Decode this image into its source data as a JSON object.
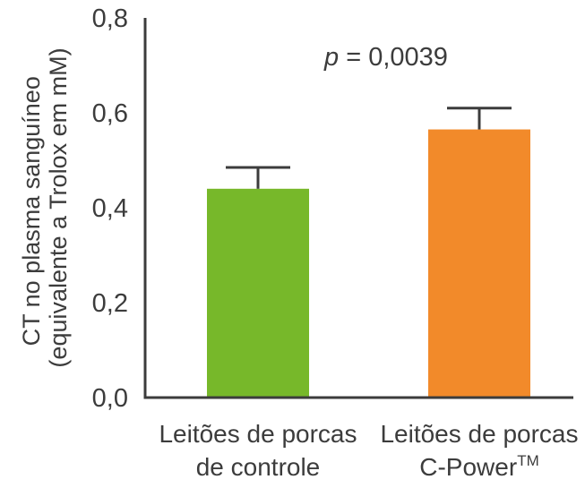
{
  "chart_data": {
    "type": "bar",
    "categories": [
      [
        "Leitões de porcas",
        "de controle"
      ],
      [
        "Leitões de porcas",
        "C-Power",
        "TM"
      ]
    ],
    "values": [
      0.44,
      0.565
    ],
    "errors": [
      0.045,
      0.045
    ],
    "colors": [
      "#77b82a",
      "#f28a2a"
    ],
    "ylabel": [
      "CT no plasma sanguíneo",
      "(equivalente a Trolox em mM)"
    ],
    "ylim": [
      0,
      0.8
    ],
    "yticks": [
      "0,0",
      "0,2",
      "0,4",
      "0,6",
      "0,8"
    ],
    "ytick_values": [
      0,
      0.2,
      0.4,
      0.6,
      0.8
    ],
    "annotation": {
      "p": "p",
      "rest": " = 0,0039"
    },
    "grid": false,
    "legend": "none"
  }
}
